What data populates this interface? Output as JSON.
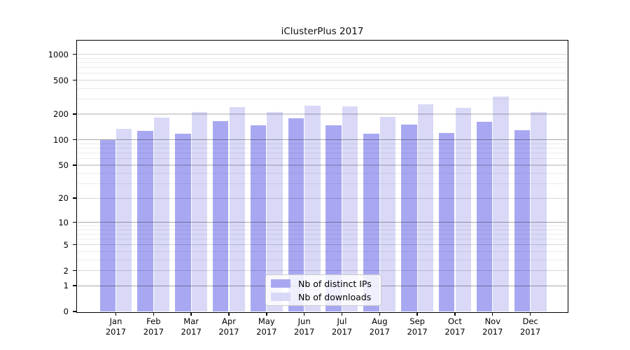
{
  "chart_data": {
    "type": "bar",
    "title": "iClusterPlus 2017",
    "categories": [
      "Jan 2017",
      "Feb 2017",
      "Mar 2017",
      "Apr 2017",
      "May 2017",
      "Jun 2017",
      "Jul 2017",
      "Aug 2017",
      "Sep 2017",
      "Oct 2017",
      "Nov 2017",
      "Dec 2017"
    ],
    "series": [
      {
        "name": "Nb of distinct IPs",
        "color": "#a8a8f2",
        "values": [
          99,
          127,
          117,
          165,
          148,
          178,
          149,
          118,
          152,
          121,
          164,
          130
        ]
      },
      {
        "name": "Nb of downloads",
        "color": "#d9d9f7",
        "values": [
          134,
          184,
          213,
          240,
          213,
          253,
          247,
          187,
          261,
          239,
          320,
          214
        ]
      }
    ],
    "y_axis": {
      "scale": "log10(value+1)",
      "range": [
        0,
        1000
      ],
      "ticks": [
        0,
        1,
        2,
        5,
        10,
        20,
        50,
        100,
        200,
        500,
        1000
      ],
      "emphasized_gridlines": [
        1,
        10,
        100
      ],
      "minor_gridlines": [
        3,
        4,
        6,
        7,
        8,
        9,
        30,
        40,
        60,
        70,
        80,
        90,
        300,
        400,
        600,
        700,
        800,
        900
      ]
    },
    "xlabel": "",
    "ylabel": "",
    "grid": true,
    "legend_position": "bottom-center"
  }
}
